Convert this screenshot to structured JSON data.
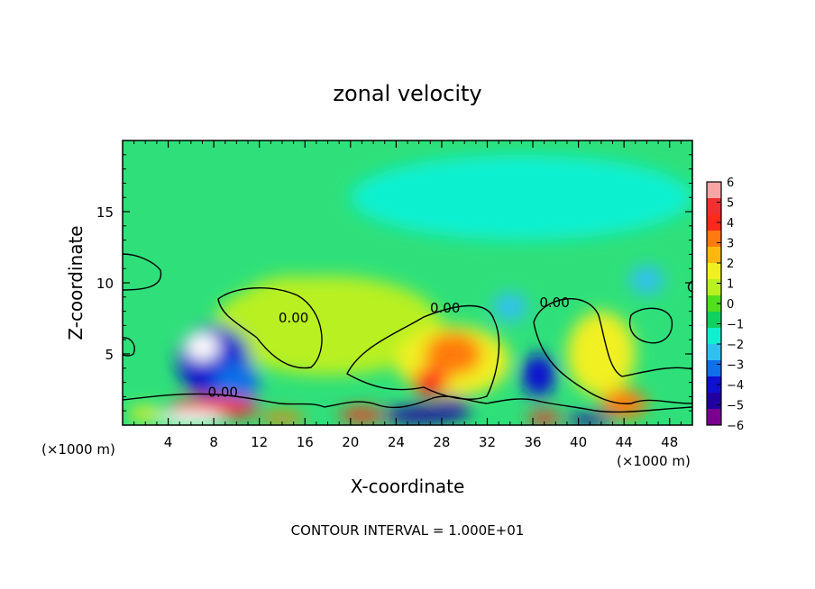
{
  "chart_data": {
    "type": "heatmap",
    "title": "zonal velocity",
    "xlabel": "X-coordinate",
    "ylabel": "Z-coordinate",
    "x_unit_left": "(×1000 m)",
    "x_unit_right": "(×1000 m)",
    "footer": "CONTOUR INTERVAL = 1.000E+01",
    "xlim": [
      0,
      50
    ],
    "ylim": [
      0,
      20
    ],
    "x_ticks": [
      4,
      8,
      12,
      16,
      20,
      24,
      28,
      32,
      36,
      40,
      44,
      48
    ],
    "y_ticks": [
      5,
      10,
      15
    ],
    "colorbar": {
      "ticks": [
        "6",
        "5",
        "4",
        "3",
        "2",
        "1",
        "0",
        "−1",
        "−2",
        "−3",
        "−4",
        "−5",
        "−6"
      ],
      "colors": [
        "#f7a5a5",
        "#f03030",
        "#ff2a1a",
        "#ff7a10",
        "#ffb810",
        "#f0f020",
        "#b8f020",
        "#50e020",
        "#10d060",
        "#10f0d0",
        "#30c0f0",
        "#1070e8",
        "#1010d0",
        "#2000a0",
        "#7a0090"
      ]
    },
    "contour_labels": [
      {
        "text": "0.00",
        "x": 15,
        "z": 7.2
      },
      {
        "text": "0.00",
        "x": 28.3,
        "z": 7.9
      },
      {
        "text": "0.00",
        "x": 37.9,
        "z": 8.3
      },
      {
        "text": "0.00",
        "x": 8.8,
        "z": 2.0
      }
    ],
    "blobs": [
      {
        "x": 18,
        "z": 7,
        "rx": 10,
        "rz": 3.5,
        "v": 0.4
      },
      {
        "x": 15,
        "z": 8,
        "rx": 5,
        "rz": 2.5,
        "v": 0.7
      },
      {
        "x": 8,
        "z": 4.5,
        "rx": 3.2,
        "rz": 2.5,
        "v": -4.2
      },
      {
        "x": 7,
        "z": 5.5,
        "rx": 1.5,
        "rz": 1.0,
        "v": -6.5
      },
      {
        "x": 10,
        "z": 3,
        "rx": 2,
        "rz": 1.5,
        "v": -3
      },
      {
        "x": 29,
        "z": 4.5,
        "rx": 5,
        "rz": 2.5,
        "v": 2
      },
      {
        "x": 29,
        "z": 5,
        "rx": 2.5,
        "rz": 1.5,
        "v": 3
      },
      {
        "x": 27,
        "z": 3,
        "rx": 1.5,
        "rz": 1,
        "v": 4
      },
      {
        "x": 36.5,
        "z": 3.5,
        "rx": 1.5,
        "rz": 1.5,
        "v": -4
      },
      {
        "x": 42,
        "z": 5,
        "rx": 3,
        "rz": 3,
        "v": 1.5
      },
      {
        "x": 44,
        "z": 1.5,
        "rx": 2,
        "rz": 1,
        "v": 3.5
      },
      {
        "x": 34,
        "z": 8.3,
        "rx": 1.5,
        "rz": 1,
        "v": -2.2
      },
      {
        "x": 46,
        "z": 10.2,
        "rx": 1.5,
        "rz": 1,
        "v": -2
      },
      {
        "x": 35,
        "z": 16,
        "rx": 15,
        "rz": 3,
        "v": -1.4
      },
      {
        "x": 8,
        "z": 1.2,
        "rx": 4,
        "rz": 0.8,
        "v": 5
      },
      {
        "x": 6,
        "z": 0.5,
        "rx": 3,
        "rz": 0.5,
        "v": 6.5
      },
      {
        "x": 26,
        "z": 0.7,
        "rx": 3,
        "rz": 0.6,
        "v": -5
      },
      {
        "x": 29,
        "z": 1.2,
        "rx": 1.5,
        "rz": 0.8,
        "v": -5
      },
      {
        "x": 21,
        "z": 0.7,
        "rx": 2,
        "rz": 0.5,
        "v": 4
      },
      {
        "x": 37,
        "z": 0.5,
        "rx": 1.5,
        "rz": 0.5,
        "v": 5
      },
      {
        "x": 41,
        "z": 0.4,
        "rx": 2,
        "rz": 0.4,
        "v": -5
      },
      {
        "x": 14,
        "z": 0.5,
        "rx": 2,
        "rz": 0.4,
        "v": 3
      },
      {
        "x": 2,
        "z": 0.8,
        "rx": 1.5,
        "rz": 0.5,
        "v": 2
      }
    ]
  }
}
